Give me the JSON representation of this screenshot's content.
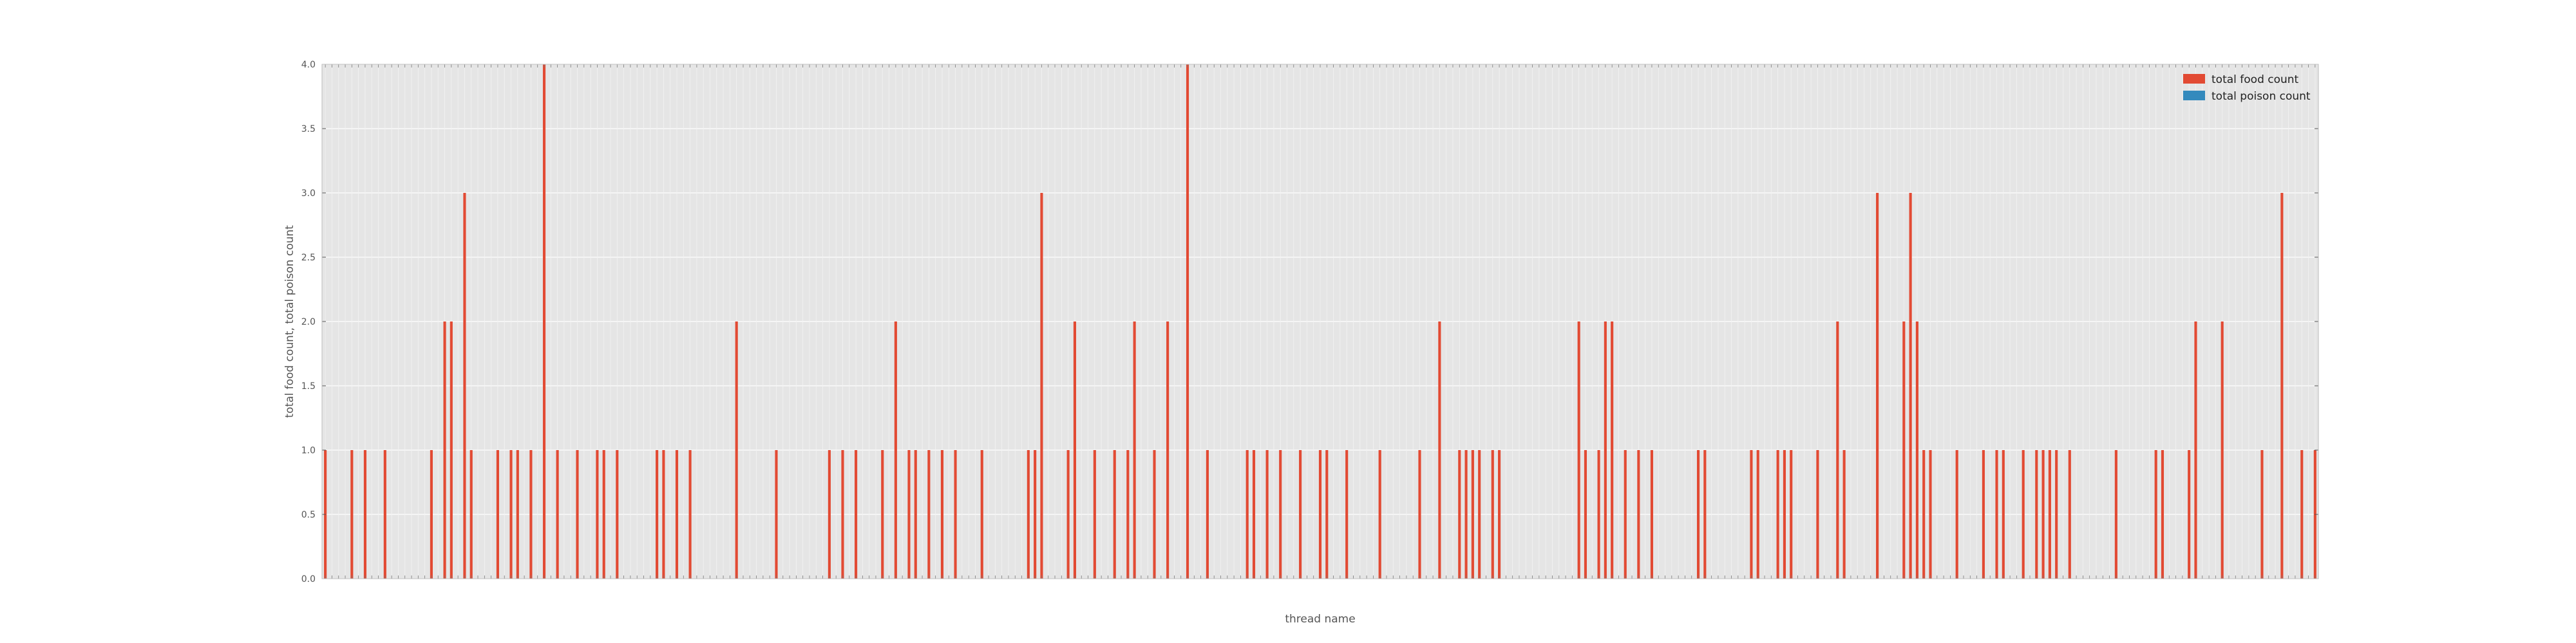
{
  "chart_data": {
    "type": "bar",
    "title": "",
    "xlabel": "thread name",
    "ylabel": "total food count, total poison count",
    "ylim": [
      0,
      4.0
    ],
    "yticks": [
      "0.0",
      "0.5",
      "1.0",
      "1.5",
      "2.0",
      "2.5",
      "3.0",
      "3.5",
      "4.0"
    ],
    "grid": true,
    "legend_position": "top-right",
    "colors": {
      "food": "#E24A33",
      "poison": "#348ABD",
      "plot_bg": "#E5E5E5",
      "grid": "#FFFFFF"
    },
    "series": [
      {
        "name": "total food count"
      },
      {
        "name": "total poison count"
      }
    ],
    "food_nonzero": [
      [
        0,
        1
      ],
      [
        4,
        1
      ],
      [
        6,
        1
      ],
      [
        9,
        1
      ],
      [
        16,
        1
      ],
      [
        18,
        2
      ],
      [
        19,
        2
      ],
      [
        21,
        3
      ],
      [
        22,
        1
      ],
      [
        26,
        1
      ],
      [
        28,
        1
      ],
      [
        29,
        1
      ],
      [
        31,
        1
      ],
      [
        33,
        4
      ],
      [
        35,
        1
      ],
      [
        38,
        1
      ],
      [
        41,
        1
      ],
      [
        42,
        1
      ],
      [
        44,
        1
      ],
      [
        50,
        1
      ],
      [
        51,
        1
      ],
      [
        53,
        1
      ],
      [
        55,
        1
      ],
      [
        62,
        2
      ],
      [
        68,
        1
      ],
      [
        76,
        1
      ],
      [
        78,
        1
      ],
      [
        80,
        1
      ],
      [
        84,
        1
      ],
      [
        86,
        2
      ],
      [
        88,
        1
      ],
      [
        89,
        1
      ],
      [
        91,
        1
      ],
      [
        93,
        1
      ],
      [
        95,
        1
      ],
      [
        99,
        1
      ],
      [
        106,
        1
      ],
      [
        107,
        1
      ],
      [
        108,
        3
      ],
      [
        112,
        1
      ],
      [
        113,
        2
      ],
      [
        116,
        1
      ],
      [
        119,
        1
      ],
      [
        121,
        1
      ],
      [
        122,
        2
      ],
      [
        125,
        1
      ],
      [
        127,
        2
      ],
      [
        130,
        4
      ],
      [
        133,
        1
      ],
      [
        139,
        1
      ],
      [
        140,
        1
      ],
      [
        142,
        1
      ],
      [
        144,
        1
      ],
      [
        147,
        1
      ],
      [
        150,
        1
      ],
      [
        151,
        1
      ],
      [
        154,
        1
      ],
      [
        159,
        1
      ],
      [
        165,
        1
      ],
      [
        168,
        2
      ],
      [
        171,
        1
      ],
      [
        172,
        1
      ],
      [
        173,
        1
      ],
      [
        174,
        1
      ],
      [
        176,
        1
      ],
      [
        177,
        1
      ],
      [
        189,
        2
      ],
      [
        190,
        1
      ],
      [
        192,
        1
      ],
      [
        193,
        2
      ],
      [
        194,
        2
      ],
      [
        196,
        1
      ],
      [
        198,
        1
      ],
      [
        200,
        1
      ],
      [
        207,
        1
      ],
      [
        208,
        1
      ],
      [
        215,
        1
      ],
      [
        216,
        1
      ],
      [
        219,
        1
      ],
      [
        220,
        1
      ],
      [
        221,
        1
      ],
      [
        225,
        1
      ],
      [
        228,
        2
      ],
      [
        229,
        1
      ],
      [
        234,
        3
      ],
      [
        238,
        2
      ],
      [
        239,
        3
      ],
      [
        240,
        2
      ],
      [
        241,
        1
      ],
      [
        242,
        1
      ],
      [
        246,
        1
      ],
      [
        250,
        1
      ],
      [
        252,
        1
      ],
      [
        253,
        1
      ],
      [
        256,
        1
      ],
      [
        258,
        1
      ],
      [
        259,
        1
      ],
      [
        260,
        1
      ],
      [
        261,
        1
      ],
      [
        263,
        1
      ],
      [
        270,
        1
      ],
      [
        276,
        1
      ],
      [
        277,
        1
      ],
      [
        281,
        1
      ],
      [
        282,
        2
      ],
      [
        286,
        2
      ],
      [
        292,
        1
      ],
      [
        295,
        3
      ],
      [
        298,
        1
      ],
      [
        300,
        1
      ]
    ]
  }
}
